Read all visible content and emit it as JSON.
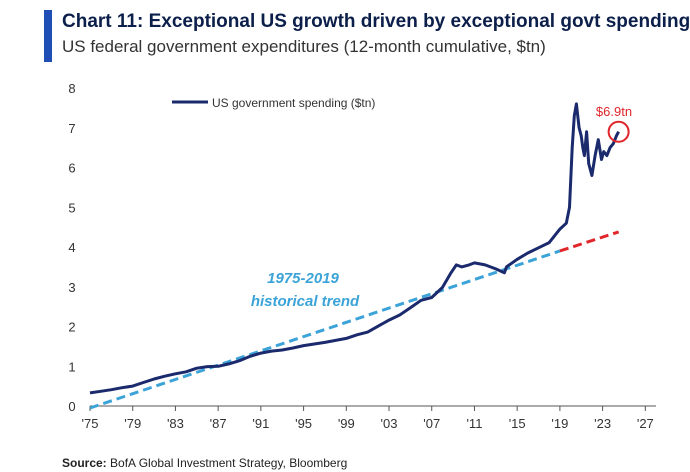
{
  "header": {
    "title": "Chart 11: Exceptional US growth driven by exceptional govt spending",
    "subtitle": "US federal government expenditures (12-month cumulative, $tn)"
  },
  "footer": {
    "source_label": "Source:",
    "source_text": "BofA Global Investment Strategy, Bloomberg"
  },
  "colors": {
    "accent": "#1f4fb4",
    "series": "#1a2a6c",
    "trend": "#3ba3d8",
    "trend_extension": "#e0262b",
    "callout": "#e0262b"
  },
  "chart_data": {
    "type": "line",
    "ylim": [
      0,
      8
    ],
    "xlim": [
      1975,
      2028
    ],
    "y_ticks": [
      "0",
      "1",
      "2",
      "3",
      "4",
      "5",
      "6",
      "7",
      "8"
    ],
    "x_ticks": [
      "'75",
      "'79",
      "'83",
      "'87",
      "'91",
      "'95",
      "'99",
      "'03",
      "'07",
      "'11",
      "'15",
      "'19",
      "'23",
      "'27"
    ],
    "series": [
      {
        "name": "US government spending ($tn)",
        "x": [
          1975,
          1976,
          1977,
          1978,
          1979,
          1980,
          1981,
          1982,
          1983,
          1984,
          1985,
          1986,
          1987,
          1988,
          1989,
          1990,
          1991,
          1992,
          1993,
          1994,
          1995,
          1996,
          1997,
          1998,
          1999,
          2000,
          2001,
          2002,
          2003,
          2004,
          2005,
          2006,
          2007,
          2008,
          2008.8,
          2009.3,
          2009.8,
          2010.5,
          2011,
          2012,
          2013,
          2013.8,
          2014,
          2015,
          2016,
          2017,
          2018,
          2019,
          2019.6,
          2019.9,
          2020.15,
          2020.35,
          2020.55,
          2020.8,
          2021.0,
          2021.15,
          2021.3,
          2021.5,
          2021.7,
          2022.0,
          2022.3,
          2022.6,
          2022.9,
          2023.1,
          2023.4,
          2023.7,
          2024.0,
          2024.3,
          2024.5
        ],
        "values": [
          0.33,
          0.37,
          0.41,
          0.46,
          0.5,
          0.59,
          0.68,
          0.75,
          0.81,
          0.86,
          0.95,
          0.99,
          1.0,
          1.06,
          1.14,
          1.25,
          1.33,
          1.38,
          1.41,
          1.46,
          1.52,
          1.56,
          1.6,
          1.65,
          1.7,
          1.79,
          1.86,
          2.01,
          2.16,
          2.29,
          2.47,
          2.66,
          2.73,
          2.98,
          3.35,
          3.55,
          3.5,
          3.55,
          3.6,
          3.55,
          3.45,
          3.35,
          3.5,
          3.69,
          3.85,
          3.98,
          4.11,
          4.45,
          4.6,
          5.0,
          6.5,
          7.3,
          7.6,
          7.0,
          6.8,
          6.5,
          6.3,
          6.9,
          6.1,
          5.8,
          6.3,
          6.7,
          6.2,
          6.4,
          6.3,
          6.5,
          6.6,
          6.8,
          6.9
        ]
      }
    ],
    "trend": {
      "label_line1": "1975-2019",
      "label_line2": "historical trend",
      "x": [
        1975,
        2019
      ],
      "values": [
        -0.05,
        3.9
      ],
      "extension_x": [
        2019,
        2024.5
      ],
      "extension_values": [
        3.9,
        4.38
      ]
    },
    "annotation": {
      "text": "$6.9tn",
      "x": 2024.5,
      "value": 6.9
    }
  }
}
